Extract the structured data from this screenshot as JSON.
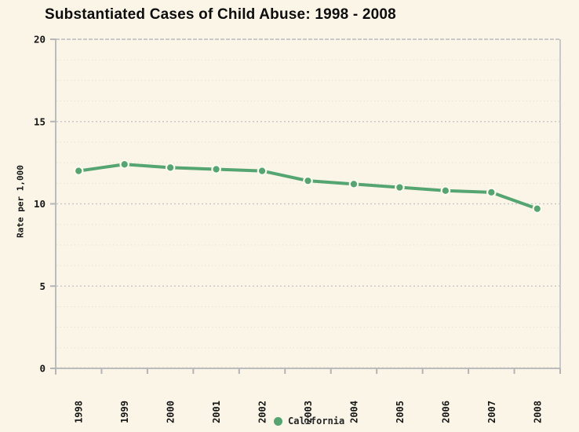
{
  "title": "Substantiated Cases of Child Abuse: 1998 - 2008",
  "chart_data": {
    "type": "line",
    "title": "Substantiated Cases of Child Abuse: 1998 - 2008",
    "categories": [
      "1998",
      "1999",
      "2000",
      "2001",
      "2002",
      "2003",
      "2004",
      "2005",
      "2006",
      "2007",
      "2008"
    ],
    "series": [
      {
        "name": "California",
        "values": [
          12.0,
          12.4,
          12.2,
          12.1,
          12.0,
          11.4,
          11.2,
          11.0,
          10.8,
          10.7,
          9.7
        ],
        "color": "#54a571",
        "marker": "circle"
      }
    ],
    "xlabel": "",
    "ylabel": "Rate per 1,000",
    "ylim": [
      0,
      20
    ],
    "yticks": [
      0,
      5,
      10,
      15,
      20
    ],
    "minor_grid_subdivisions": 4,
    "grid": "horizontal dotted major gridlines with faint dotted minor gridlines",
    "legend_position": "bottom-center",
    "x_tick_label_rotation": -90
  },
  "legend": {
    "items": [
      {
        "label": "California",
        "marker": "circle-icon",
        "color": "#54a571"
      }
    ]
  },
  "colors": {
    "background": "#faf5e6",
    "line": "#54a571",
    "marker_ring": "#fdfaef",
    "grid_major": "#c9c9c9",
    "grid_minor": "#e9e3d2",
    "axis": "#bdbdbd",
    "tick": "#b5b5b5",
    "text": "#161616"
  }
}
